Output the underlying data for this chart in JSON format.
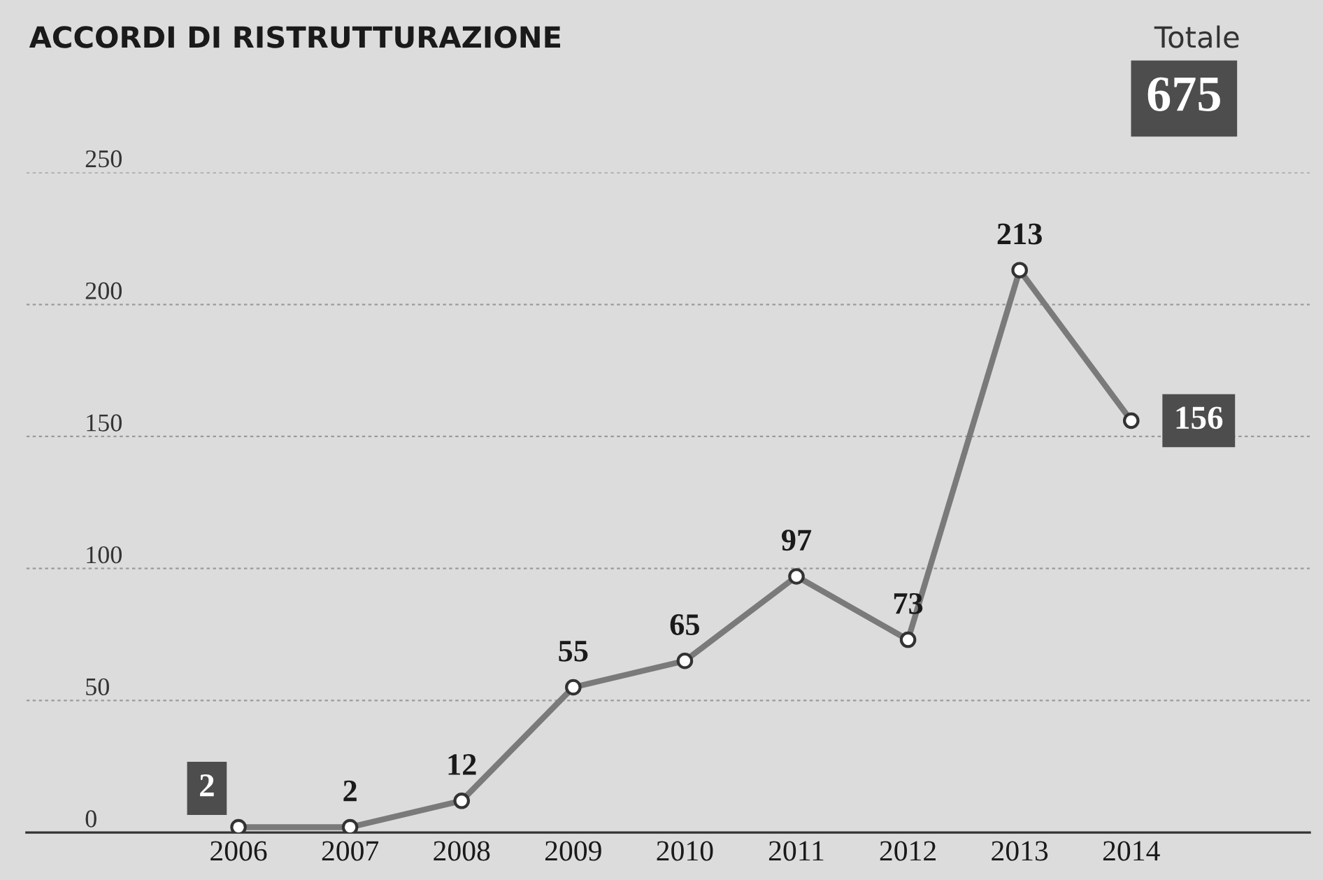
{
  "chart_data": {
    "type": "line",
    "title": "ACCORDI DI RISTRUTTURAZIONE",
    "categories": [
      "2006",
      "2007",
      "2008",
      "2009",
      "2010",
      "2011",
      "2012",
      "2013",
      "2014"
    ],
    "series": [
      {
        "color": "#7a7a7a",
        "values": [
          2,
          2,
          12,
          55,
          65,
          97,
          73,
          213,
          156
        ]
      }
    ],
    "ylim": [
      0,
      250
    ],
    "yticks": [
      0,
      50,
      100,
      150,
      200,
      250
    ],
    "grid": "y",
    "marker": "circle",
    "line_style": "solid",
    "data_labels": true,
    "legend": false,
    "annotations": [
      "Totale",
      "675"
    ]
  }
}
